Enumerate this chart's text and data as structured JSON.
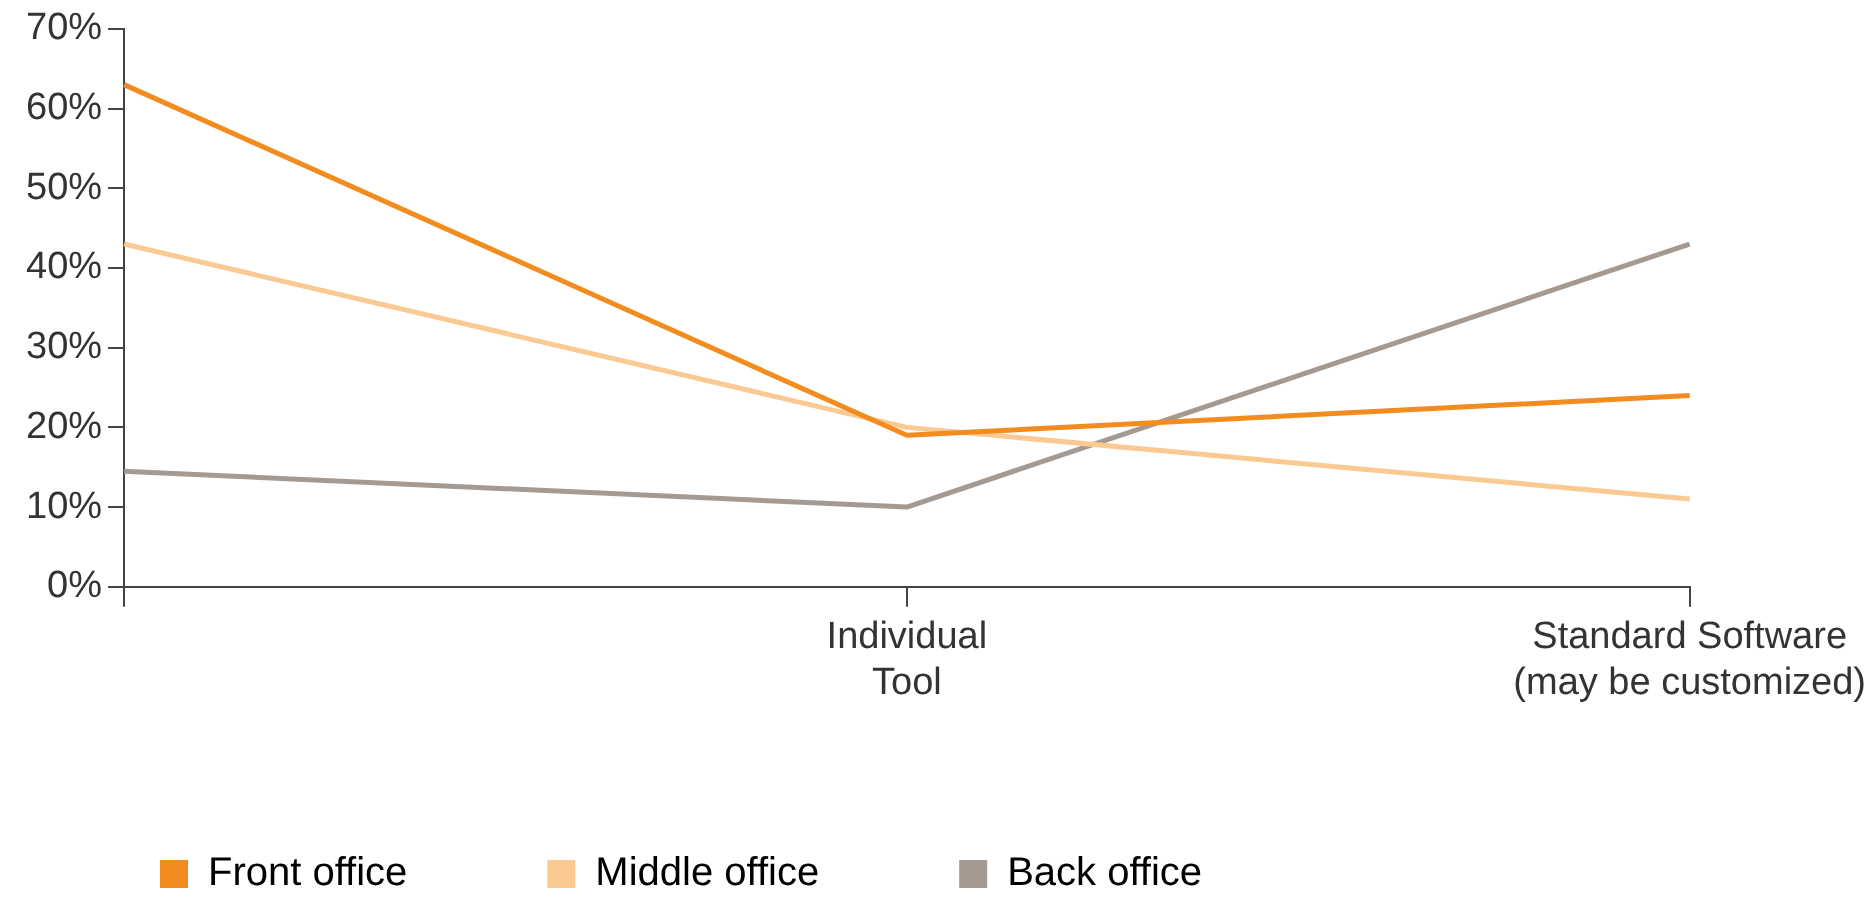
{
  "chart_data": {
    "type": "line",
    "categories": [
      null,
      "Individual\nTool",
      "Standard Software\n(may be customized)"
    ],
    "series": [
      {
        "name": "Front office",
        "color": "#f28c1e",
        "values": [
          63,
          19,
          24
        ]
      },
      {
        "name": "Middle office",
        "color": "#fbc992",
        "values": [
          43,
          20,
          11
        ]
      },
      {
        "name": "Back office",
        "color": "#a59a91",
        "values": [
          14.5,
          10,
          43
        ]
      }
    ],
    "ylim": [
      0,
      70
    ],
    "yticks": [
      {
        "value": 0,
        "label": "0%"
      },
      {
        "value": 10,
        "label": "10%"
      },
      {
        "value": 20,
        "label": "20%"
      },
      {
        "value": 30,
        "label": "30%"
      },
      {
        "value": 40,
        "label": "40%"
      },
      {
        "value": 50,
        "label": "50%"
      },
      {
        "value": 60,
        "label": "60%"
      },
      {
        "value": 70,
        "label": "70%"
      }
    ],
    "grid": false,
    "legend": "bottom left",
    "marker": "none",
    "line_style": "solid"
  }
}
